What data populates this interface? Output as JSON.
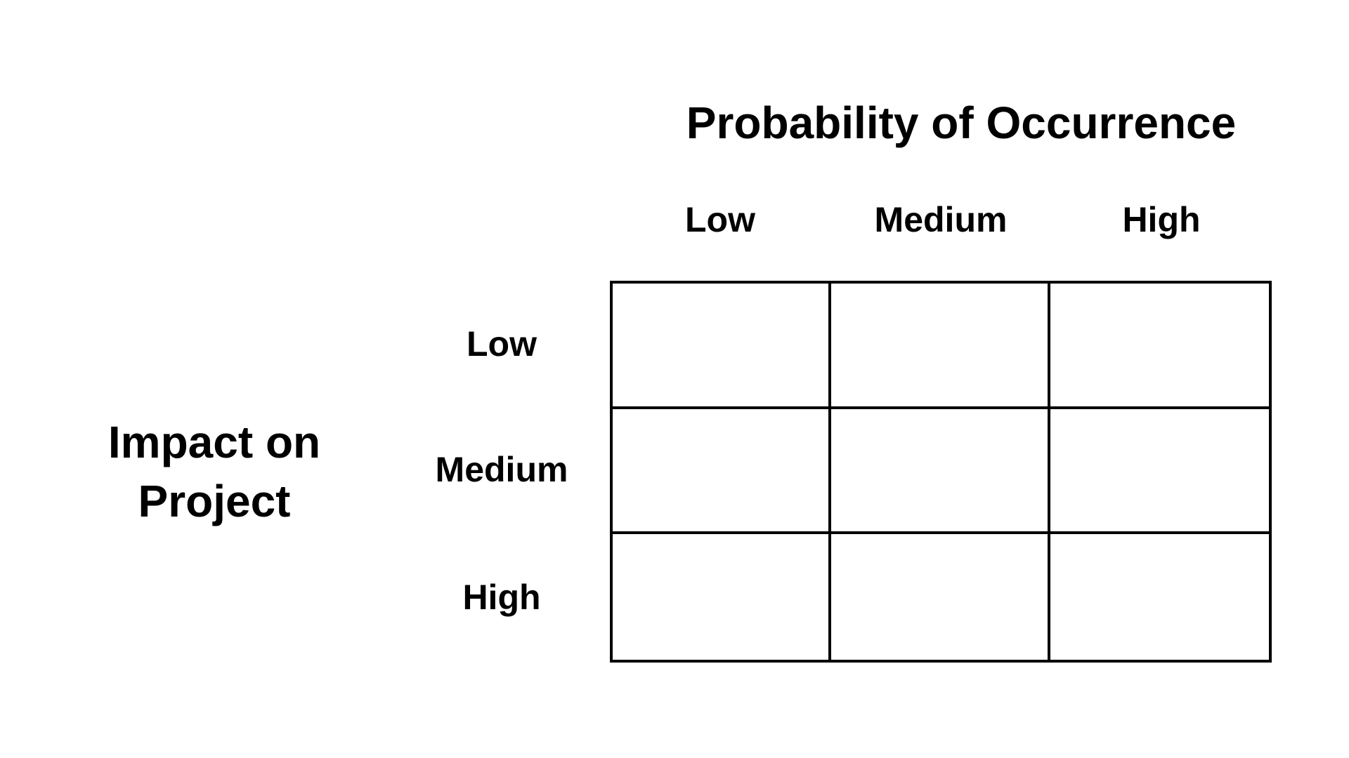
{
  "matrix": {
    "column_axis_title": "Probability of Occurrence",
    "row_axis_title_line1": "Impact on",
    "row_axis_title_line2": "Project",
    "column_levels": [
      "Low",
      "Medium",
      "High"
    ],
    "row_levels": [
      "Low",
      "Medium",
      "High"
    ],
    "cells": [
      [
        "",
        "",
        ""
      ],
      [
        "",
        "",
        ""
      ],
      [
        "",
        "",
        ""
      ]
    ],
    "line_color": "#000000",
    "background_color": "#ffffff"
  }
}
